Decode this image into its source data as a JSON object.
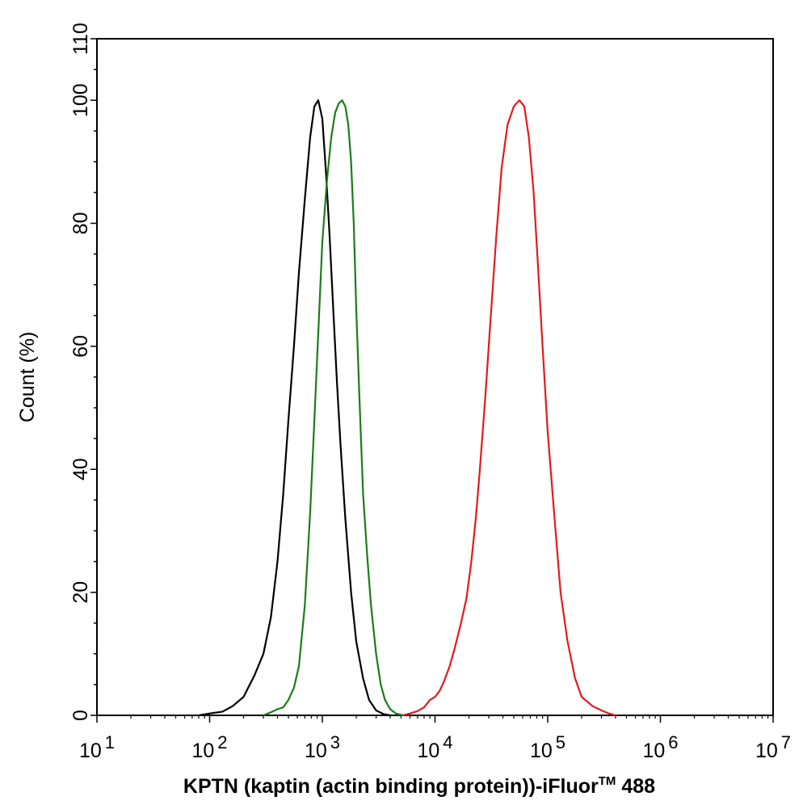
{
  "chart_data": {
    "type": "line",
    "title": "",
    "xlabel": "KPTN (kaptin (actin binding protein))-iFluor",
    "xlabel_superscript": "TM",
    "xlabel_suffix": " 488",
    "ylabel": "Count  (%)",
    "x_scale": "log",
    "xlim": [
      10,
      10000000
    ],
    "ylim": [
      0,
      110
    ],
    "x_tick_values": [
      10,
      100,
      1000,
      10000,
      100000,
      1000000,
      10000000
    ],
    "x_tick_bases": [
      "10",
      "10",
      "10",
      "10",
      "10",
      "10",
      "10"
    ],
    "x_tick_exponents": [
      "1",
      "2",
      "3",
      "4",
      "5",
      "6",
      "7"
    ],
    "y_ticks": [
      "0",
      "20",
      "40",
      "60",
      "80",
      "100",
      "110"
    ],
    "y_tick_values": [
      0,
      20,
      40,
      60,
      80,
      100,
      110
    ],
    "grid": false,
    "series": [
      {
        "name": "black",
        "color": "#000000",
        "points": [
          [
            80,
            0
          ],
          [
            100,
            0.3
          ],
          [
            130,
            0.6
          ],
          [
            160,
            1.5
          ],
          [
            200,
            3
          ],
          [
            250,
            6.5
          ],
          [
            300,
            10
          ],
          [
            350,
            16
          ],
          [
            400,
            25
          ],
          [
            450,
            36
          ],
          [
            500,
            48
          ],
          [
            560,
            60
          ],
          [
            620,
            72
          ],
          [
            700,
            84
          ],
          [
            780,
            94
          ],
          [
            850,
            99
          ],
          [
            920,
            100
          ],
          [
            1000,
            97
          ],
          [
            1080,
            88
          ],
          [
            1160,
            78
          ],
          [
            1250,
            66
          ],
          [
            1350,
            54
          ],
          [
            1450,
            44
          ],
          [
            1600,
            32
          ],
          [
            1800,
            20
          ],
          [
            2000,
            12
          ],
          [
            2300,
            6
          ],
          [
            2600,
            2.5
          ],
          [
            3000,
            0.8
          ],
          [
            3500,
            0.2
          ],
          [
            4000,
            0
          ]
        ]
      },
      {
        "name": "green",
        "color": "#1a7d1a",
        "points": [
          [
            300,
            0
          ],
          [
            350,
            0.5
          ],
          [
            400,
            1
          ],
          [
            450,
            1.3
          ],
          [
            500,
            2.5
          ],
          [
            560,
            4.5
          ],
          [
            620,
            8
          ],
          [
            700,
            18
          ],
          [
            780,
            33
          ],
          [
            850,
            48
          ],
          [
            930,
            64
          ],
          [
            1000,
            77
          ],
          [
            1100,
            87
          ],
          [
            1200,
            94
          ],
          [
            1300,
            98
          ],
          [
            1400,
            99.5
          ],
          [
            1500,
            100
          ],
          [
            1600,
            99
          ],
          [
            1700,
            96
          ],
          [
            1800,
            90
          ],
          [
            1900,
            80
          ],
          [
            2000,
            66
          ],
          [
            2150,
            50
          ],
          [
            2300,
            36
          ],
          [
            2500,
            26
          ],
          [
            2700,
            18
          ],
          [
            3000,
            10
          ],
          [
            3300,
            5
          ],
          [
            3600,
            2.5
          ],
          [
            4000,
            1
          ],
          [
            4500,
            0.3
          ],
          [
            5200,
            0
          ]
        ]
      },
      {
        "name": "red",
        "color": "#e31a1c",
        "points": [
          [
            5200,
            0
          ],
          [
            6000,
            0.3
          ],
          [
            7000,
            0.7
          ],
          [
            8000,
            1.3
          ],
          [
            9000,
            2.5
          ],
          [
            10000,
            3
          ],
          [
            11000,
            4
          ],
          [
            12000,
            5.5
          ],
          [
            13500,
            8
          ],
          [
            15000,
            11
          ],
          [
            17000,
            15
          ],
          [
            19000,
            19
          ],
          [
            21000,
            25
          ],
          [
            23000,
            32
          ],
          [
            25000,
            40
          ],
          [
            28000,
            52
          ],
          [
            31000,
            64
          ],
          [
            35000,
            78
          ],
          [
            39000,
            89
          ],
          [
            44000,
            96
          ],
          [
            50000,
            99
          ],
          [
            56000,
            100
          ],
          [
            62000,
            99
          ],
          [
            68000,
            94
          ],
          [
            75000,
            85
          ],
          [
            82000,
            73
          ],
          [
            90000,
            60
          ],
          [
            100000,
            46
          ],
          [
            115000,
            32
          ],
          [
            130000,
            20
          ],
          [
            150000,
            12
          ],
          [
            175000,
            6
          ],
          [
            200000,
            3
          ],
          [
            250000,
            1.5
          ],
          [
            300000,
            0.8
          ],
          [
            350000,
            0.3
          ],
          [
            400000,
            0
          ]
        ]
      }
    ]
  }
}
